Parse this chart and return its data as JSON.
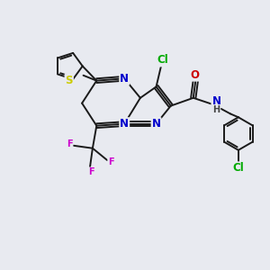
{
  "background_color": "#e8eaf0",
  "bond_color": "#1a1a1a",
  "bond_width": 1.4,
  "atom_colors": {
    "N": "#0000cc",
    "S": "#cccc00",
    "O": "#cc0000",
    "F": "#cc00cc",
    "Cl": "#00aa00",
    "H": "#444444",
    "C": "#1a1a1a"
  },
  "fs_large": 8.5,
  "fs_small": 7.0
}
